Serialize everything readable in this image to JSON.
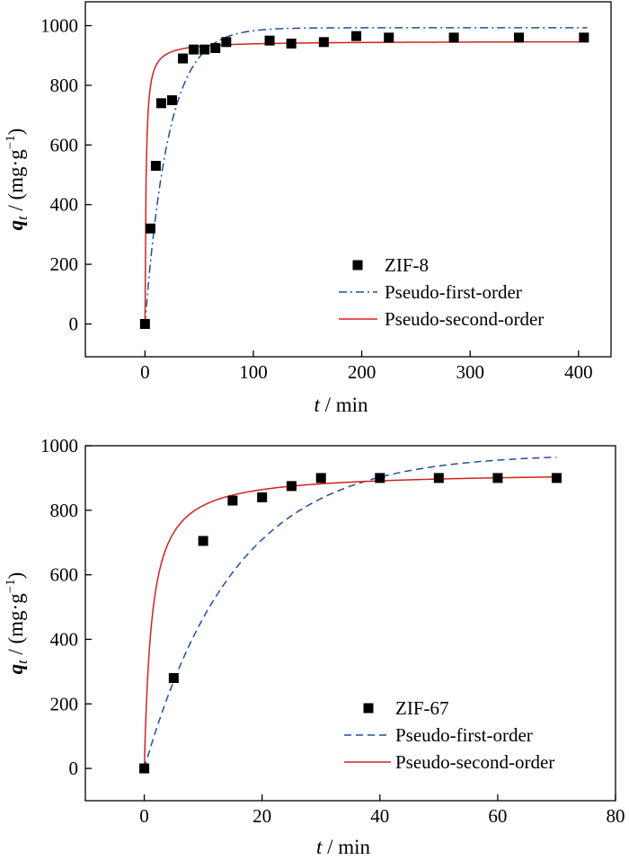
{
  "chart_data": [
    {
      "type": "scatter",
      "panel": "top",
      "xlabel": {
        "var": "t",
        "unit": " / min"
      },
      "ylabel": {
        "var": "q",
        "sub": "t",
        "unit": " / (mg·g",
        "sup": "−1",
        "close": ")"
      },
      "xlim": [
        -55,
        430
      ],
      "ylim": [
        -110,
        1080
      ],
      "xticks": [
        0,
        100,
        200,
        300,
        400
      ],
      "yticks": [
        0,
        200,
        400,
        600,
        800,
        1000
      ],
      "grid": false,
      "legend_position": "bottom-right",
      "series": [
        {
          "name": "ZIF-8",
          "kind": "markers",
          "color": "#000000",
          "x": [
            0,
            5,
            10,
            15,
            25,
            35,
            45,
            55,
            65,
            75,
            115,
            135,
            165,
            195,
            225,
            285,
            345,
            405
          ],
          "y": [
            0,
            320,
            530,
            740,
            750,
            890,
            920,
            920,
            925,
            945,
            950,
            940,
            945,
            965,
            960,
            960,
            960,
            960
          ]
        },
        {
          "name": "Pseudo-first-order",
          "kind": "dashdot",
          "color": "#1f4e9e",
          "model": "first",
          "qe": 993,
          "k": 0.046,
          "xmax": 408
        },
        {
          "name": "Pseudo-second-order",
          "kind": "solid",
          "color": "#d62020",
          "model": "second",
          "qe": 948,
          "k": 0.0011,
          "xmax": 408
        }
      ]
    },
    {
      "type": "scatter",
      "panel": "bottom",
      "xlabel": {
        "var": "t",
        "unit": " / min"
      },
      "ylabel": {
        "var": "q",
        "sub": "t",
        "unit": " / (mg·g",
        "sup": "−1",
        "close": ")"
      },
      "xlim": [
        -10,
        80
      ],
      "ylim": [
        -100,
        1000
      ],
      "xticks": [
        0,
        20,
        40,
        60,
        80
      ],
      "yticks": [
        0,
        200,
        400,
        600,
        800,
        1000
      ],
      "grid": false,
      "legend_position": "bottom-right",
      "series": [
        {
          "name": "ZIF-67",
          "kind": "markers",
          "color": "#000000",
          "x": [
            0,
            5,
            10,
            15,
            20,
            25,
            30,
            40,
            50,
            60,
            70
          ],
          "y": [
            0,
            280,
            705,
            830,
            840,
            875,
            900,
            900,
            900,
            900,
            900
          ]
        },
        {
          "name": "Pseudo-first-order",
          "kind": "dashed",
          "color": "#1f4e9e",
          "model": "first",
          "qe": 975,
          "k": 0.065,
          "xmax": 70
        },
        {
          "name": "Pseudo-second-order",
          "kind": "solid",
          "color": "#d62020",
          "model": "second",
          "qe": 920,
          "k": 0.00084,
          "xmax": 70
        }
      ]
    }
  ]
}
